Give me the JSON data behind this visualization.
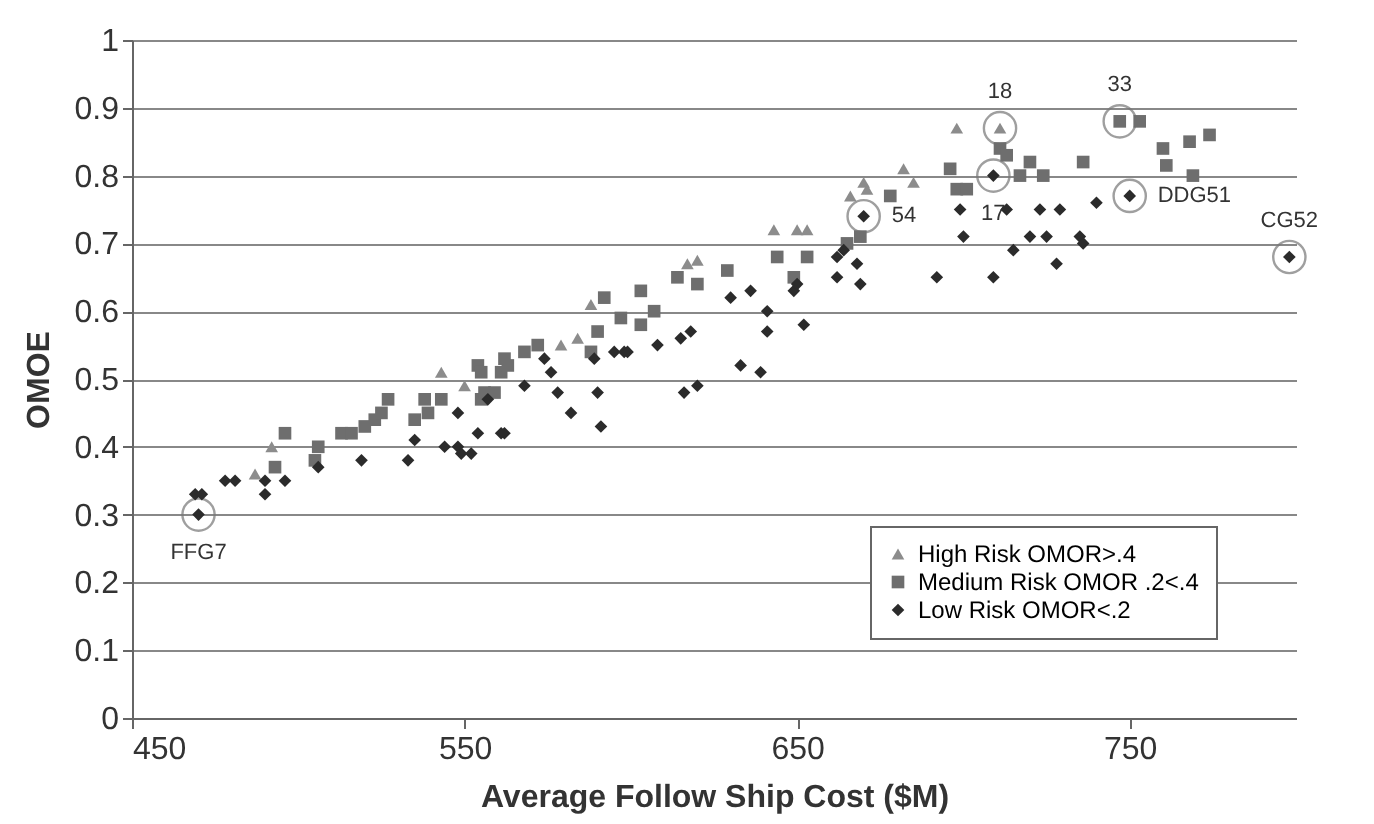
{
  "chart_data": {
    "type": "scatter",
    "xlabel": "Average Follow Ship Cost ($M)",
    "ylabel": "OMOE",
    "xlim": [
      450,
      800
    ],
    "xticks": [
      450,
      550,
      650,
      750
    ],
    "ylim": [
      0,
      1
    ],
    "yticks": [
      0,
      0.1,
      0.2,
      0.3,
      0.4,
      0.5,
      0.6,
      0.7,
      0.8,
      0.9,
      1
    ],
    "grid": "y",
    "legend": "bottom right",
    "series": [
      {
        "name": "High Risk OMOR>.4",
        "color": "#8c8c8c",
        "marker": "triangle",
        "x": [
          487,
          492,
          543,
          550,
          579,
          584,
          588,
          617,
          620,
          643,
          650,
          653,
          666,
          670,
          671,
          682,
          685,
          698,
          711
        ],
        "values": [
          0.36,
          0.4,
          0.51,
          0.49,
          0.55,
          0.56,
          0.61,
          0.67,
          0.675,
          0.72,
          0.72,
          0.72,
          0.77,
          0.79,
          0.78,
          0.81,
          0.79,
          0.87,
          0.87
        ]
      },
      {
        "name": "Medium Risk OMOR .2<.4",
        "color": "#6e6e6e",
        "marker": "square",
        "x": [
          493,
          496,
          505,
          506,
          513,
          516,
          520,
          523,
          525,
          527,
          535,
          538,
          539,
          543,
          554,
          555,
          555,
          556,
          559,
          561,
          562,
          563,
          568,
          572,
          588,
          590,
          592,
          597,
          603,
          603,
          607,
          614,
          620,
          629,
          644,
          649,
          653,
          665,
          669,
          678,
          696,
          698,
          701,
          711,
          713,
          717,
          720,
          724,
          736,
          747,
          753,
          760,
          761,
          768,
          769,
          774
        ],
        "values": [
          0.37,
          0.42,
          0.38,
          0.4,
          0.42,
          0.42,
          0.43,
          0.44,
          0.45,
          0.47,
          0.44,
          0.47,
          0.45,
          0.47,
          0.52,
          0.47,
          0.51,
          0.48,
          0.48,
          0.51,
          0.53,
          0.52,
          0.54,
          0.55,
          0.54,
          0.57,
          0.62,
          0.59,
          0.63,
          0.58,
          0.6,
          0.65,
          0.64,
          0.66,
          0.68,
          0.65,
          0.68,
          0.7,
          0.71,
          0.77,
          0.81,
          0.78,
          0.78,
          0.84,
          0.83,
          0.8,
          0.82,
          0.8,
          0.82,
          0.88,
          0.88,
          0.84,
          0.815,
          0.85,
          0.8,
          0.86
        ]
      },
      {
        "name": "Low Risk OMOR<.2",
        "color": "#2b2b2b",
        "marker": "diamond",
        "x": [
          469,
          470,
          471,
          478,
          481,
          490,
          490,
          496,
          506,
          519,
          533,
          535,
          544,
          548,
          549,
          552,
          554,
          561,
          562,
          548,
          557,
          568,
          574,
          576,
          578,
          582,
          589,
          590,
          591,
          595,
          598,
          599,
          608,
          615,
          618,
          616,
          620,
          630,
          633,
          636,
          639,
          641,
          641,
          649,
          650,
          652,
          662,
          662,
          664,
          668,
          669,
          670,
          692,
          699,
          700,
          709,
          709,
          713,
          715,
          720,
          723,
          725,
          728,
          729,
          735,
          736,
          740,
          750,
          798
        ],
        "values": [
          0.33,
          0.3,
          0.33,
          0.35,
          0.35,
          0.35,
          0.33,
          0.35,
          0.37,
          0.38,
          0.38,
          0.41,
          0.4,
          0.4,
          0.39,
          0.39,
          0.42,
          0.42,
          0.42,
          0.45,
          0.47,
          0.49,
          0.53,
          0.51,
          0.48,
          0.45,
          0.53,
          0.48,
          0.43,
          0.54,
          0.54,
          0.54,
          0.55,
          0.56,
          0.57,
          0.48,
          0.49,
          0.62,
          0.52,
          0.63,
          0.51,
          0.6,
          0.57,
          0.63,
          0.64,
          0.58,
          0.68,
          0.65,
          0.69,
          0.67,
          0.64,
          0.74,
          0.65,
          0.75,
          0.71,
          0.65,
          0.8,
          0.75,
          0.69,
          0.71,
          0.75,
          0.71,
          0.67,
          0.75,
          0.71,
          0.7,
          0.76,
          0.77,
          0.68
        ]
      }
    ],
    "annotations": [
      {
        "text": "FFG7",
        "x": 470,
        "y": 0.3
      },
      {
        "text": "54",
        "x": 670,
        "y": 0.74
      },
      {
        "text": "17",
        "x": 709,
        "y": 0.8
      },
      {
        "text": "18",
        "x": 711,
        "y": 0.87
      },
      {
        "text": "33",
        "x": 747,
        "y": 0.88
      },
      {
        "text": "DDG51",
        "x": 750,
        "y": 0.77
      },
      {
        "text": "CG52",
        "x": 798,
        "y": 0.68
      }
    ]
  }
}
